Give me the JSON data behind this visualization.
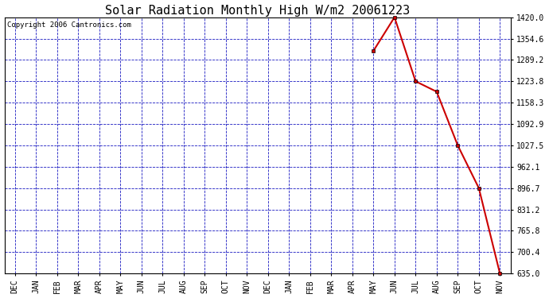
{
  "title": "Solar Radiation Monthly High W/m2 20061223",
  "copyright": "Copyright 2006 Cantronics.com",
  "x_labels": [
    "DEC",
    "JAN",
    "FEB",
    "MAR",
    "APR",
    "MAY",
    "JUN",
    "JUL",
    "AUG",
    "SEP",
    "OCT",
    "NOV",
    "DEC",
    "JAN",
    "FEB",
    "MAR",
    "APR",
    "MAY",
    "JUN",
    "JUL",
    "AUG",
    "SEP",
    "OCT",
    "NOV"
  ],
  "data_x_indices": [
    17,
    18,
    19,
    20,
    21,
    22,
    23
  ],
  "data_y_values": [
    1317.0,
    1420.0,
    1223.8,
    1192.0,
    1027.5,
    896.7,
    635.0
  ],
  "y_min": 635.0,
  "y_max": 1420.0,
  "y_ticks": [
    635.0,
    700.4,
    765.8,
    831.2,
    896.7,
    962.1,
    1027.5,
    1092.9,
    1158.3,
    1223.8,
    1289.2,
    1354.6,
    1420.0
  ],
  "line_color": "#cc0000",
  "marker_color": "#cc0000",
  "marker_style": "s",
  "marker_size": 3,
  "grid_color": "#0000bb",
  "bg_color": "#ffffff",
  "plot_bg_color": "#ffffff",
  "title_fontsize": 11,
  "copyright_fontsize": 6.5,
  "tick_fontsize": 7
}
